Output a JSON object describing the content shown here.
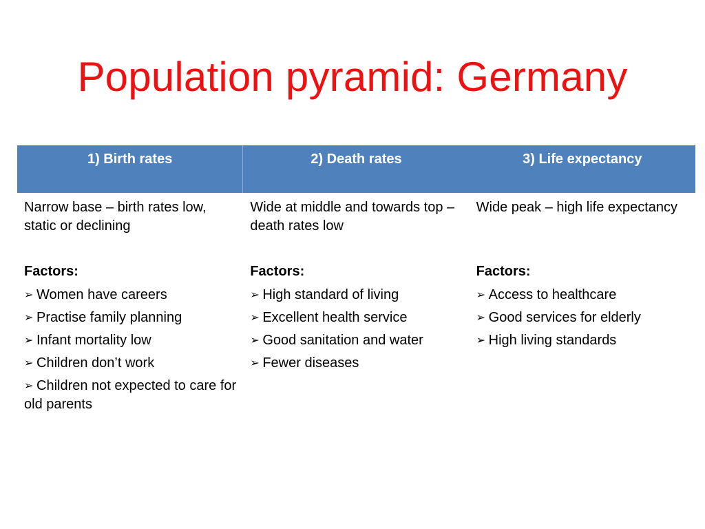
{
  "slide": {
    "title": "Population pyramid: Germany"
  },
  "table": {
    "header_color": "#4f81bd",
    "columns": [
      {
        "heading": "1) Birth rates",
        "description": "Narrow base – birth rates low, static or declining",
        "factors_label": "Factors:",
        "factors": [
          "Women have careers",
          "Practise family planning",
          "Infant mortality low",
          "Children don’t work",
          "Children not expected to care for old parents"
        ]
      },
      {
        "heading": "2) Death rates",
        "description": "Wide at middle and towards top – death rates low",
        "factors_label": "Factors:",
        "factors": [
          "High standard of living",
          "Excellent health service",
          "Good sanitation and water",
          "Fewer diseases"
        ]
      },
      {
        "heading": "3) Life expectancy",
        "description": "Wide peak – high life expectancy",
        "factors_label": "Factors:",
        "factors": [
          "Access to healthcare",
          "Good services for elderly",
          "High living standards"
        ]
      }
    ]
  },
  "icons": {
    "bullet": "arrowhead-bullet-icon",
    "bullet_glyph": "➢"
  }
}
